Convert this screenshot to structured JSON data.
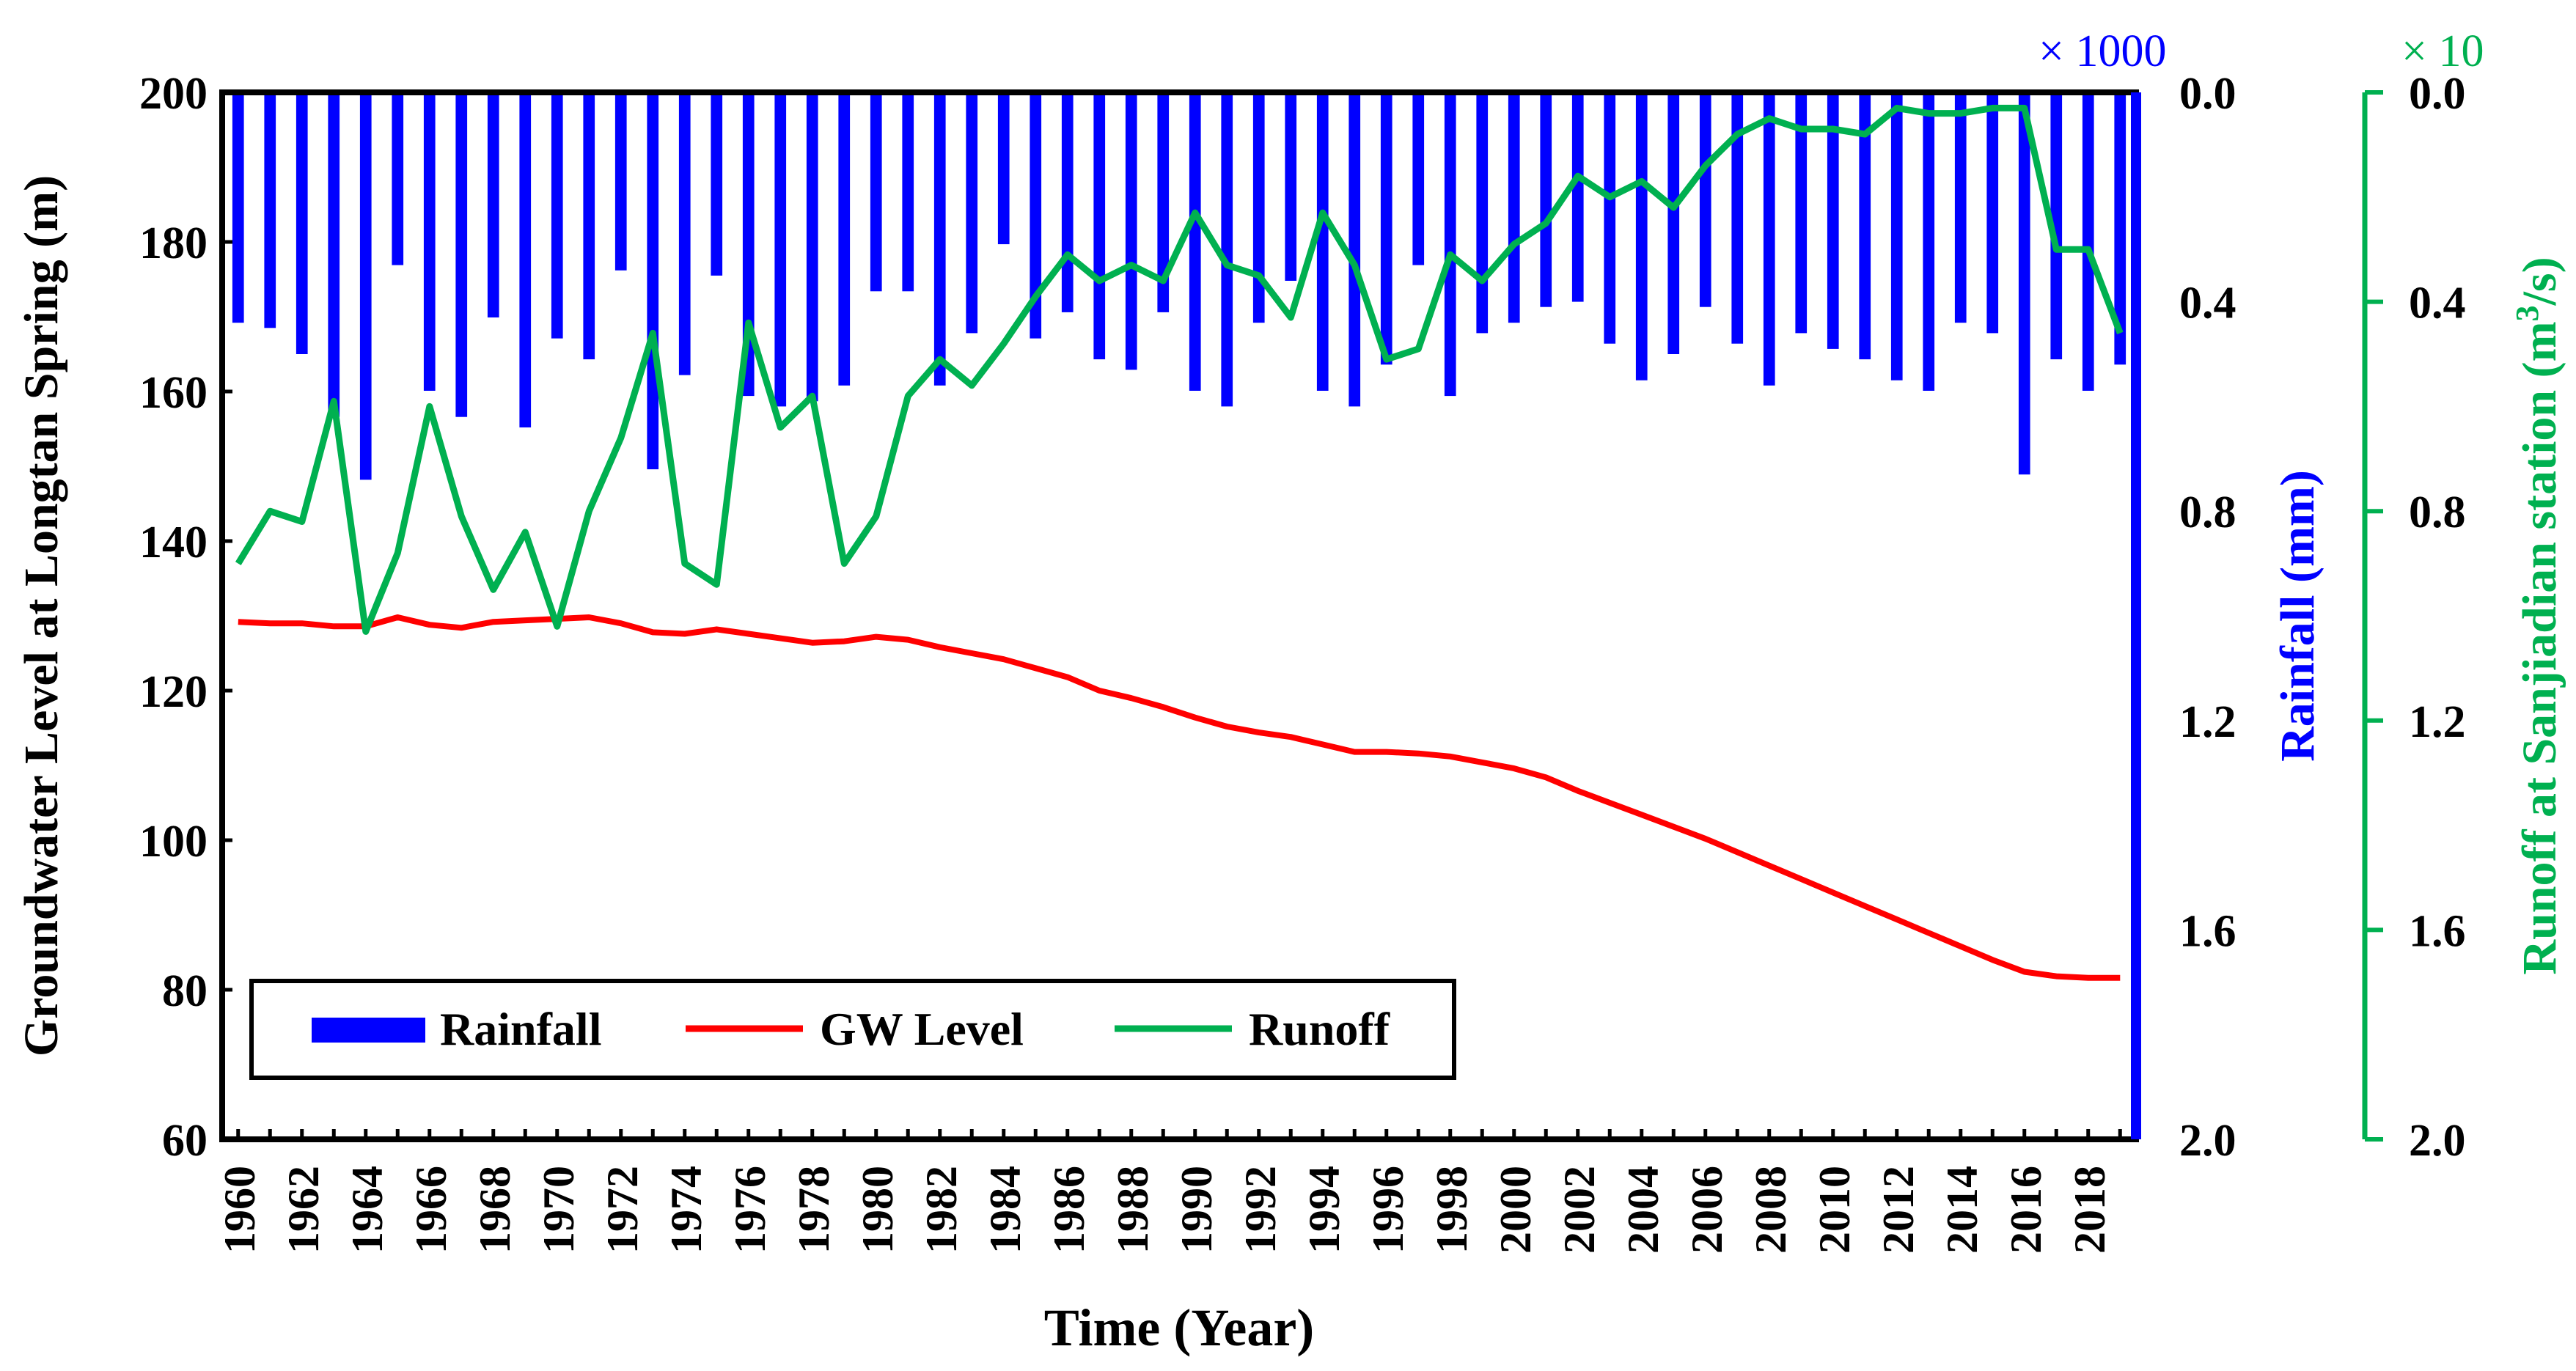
{
  "chart_data": {
    "type": "bar+line",
    "title": "",
    "xlabel": "Time (Year)",
    "ylabel_left": "Groundwater Level at Longtan Spring (m)",
    "ylabel_right1": "Rainfall (mm)",
    "ylabel_right2_prefix": "Runoff at Sanjiadian station (m",
    "ylabel_right2_sup": "3",
    "ylabel_right2_suffix": "/s)",
    "rainfall_multiplier": "× 1000",
    "runoff_multiplier": "× 10",
    "x": [
      1960,
      1961,
      1962,
      1963,
      1964,
      1965,
      1966,
      1967,
      1968,
      1969,
      1970,
      1971,
      1972,
      1973,
      1974,
      1975,
      1976,
      1977,
      1978,
      1979,
      1980,
      1981,
      1982,
      1983,
      1984,
      1985,
      1986,
      1987,
      1988,
      1989,
      1990,
      1991,
      1992,
      1993,
      1994,
      1995,
      1996,
      1997,
      1998,
      1999,
      2000,
      2001,
      2002,
      2003,
      2004,
      2005,
      2006,
      2007,
      2008,
      2009,
      2010,
      2011,
      2012,
      2013,
      2014,
      2015,
      2016,
      2017,
      2018,
      2019
    ],
    "x_tick_labels": [
      "1960",
      "1962",
      "1964",
      "1966",
      "1968",
      "1970",
      "1972",
      "1974",
      "1976",
      "1978",
      "1980",
      "1982",
      "1984",
      "1986",
      "1988",
      "1990",
      "1992",
      "1994",
      "1996",
      "1998",
      "2000",
      "2002",
      "2004",
      "2006",
      "2008",
      "2010",
      "2012",
      "2014",
      "2016",
      "2018"
    ],
    "ylim_left": [
      60,
      200
    ],
    "y_ticks_left": [
      "200",
      "180",
      "160",
      "140",
      "120",
      "100",
      "80",
      "60"
    ],
    "ylim_rainfall": [
      0,
      2.0
    ],
    "y_ticks_rainfall": [
      "0.0",
      "0.4",
      "0.8",
      "1.2",
      "1.6",
      "2.0"
    ],
    "ylim_runoff": [
      0,
      2.0
    ],
    "y_ticks_runoff": [
      "0.0",
      "0.4",
      "0.8",
      "1.2",
      "1.6",
      "2.0"
    ],
    "series": [
      {
        "name": "Rainfall",
        "type": "bar",
        "axis": "rainfall",
        "color": "#0000ff",
        "values": [
          0.44,
          0.45,
          0.5,
          0.62,
          0.74,
          0.33,
          0.57,
          0.62,
          0.43,
          0.64,
          0.47,
          0.51,
          0.34,
          0.72,
          0.54,
          0.35,
          0.58,
          0.6,
          0.59,
          0.56,
          0.38,
          0.38,
          0.56,
          0.46,
          0.29,
          0.47,
          0.42,
          0.51,
          0.53,
          0.42,
          0.57,
          0.6,
          0.44,
          0.36,
          0.57,
          0.6,
          0.52,
          0.33,
          0.58,
          0.46,
          0.44,
          0.41,
          0.4,
          0.48,
          0.55,
          0.5,
          0.41,
          0.48,
          0.56,
          0.46,
          0.49,
          0.51,
          0.55,
          0.57,
          0.44,
          0.46,
          0.73,
          0.51,
          0.57,
          0.52
        ]
      },
      {
        "name": "GW Level",
        "type": "line",
        "axis": "left",
        "color": "#ff0000",
        "values": [
          129.2,
          129,
          129,
          128.6,
          128.6,
          129.8,
          128.8,
          128.4,
          129.2,
          129.4,
          129.6,
          129.8,
          129,
          127.8,
          127.6,
          128.2,
          127.6,
          127,
          126.4,
          126.6,
          127.2,
          126.8,
          125.8,
          125,
          124.2,
          123,
          121.8,
          120,
          119,
          117.8,
          116.4,
          115.2,
          114.4,
          113.8,
          112.8,
          111.8,
          111.8,
          111.6,
          111.2,
          110.4,
          109.6,
          108.4,
          106.6,
          105,
          103.4,
          101.8,
          100.2,
          98.4,
          96.6,
          94.8,
          93,
          91.2,
          89.4,
          87.6,
          85.8,
          84,
          82.4,
          81.8,
          81.6,
          81.6
        ]
      },
      {
        "name": "Runoff",
        "type": "line",
        "axis": "runoff",
        "color": "#00b050",
        "values": [
          0.9,
          0.8,
          0.82,
          0.59,
          1.03,
          0.88,
          0.6,
          0.81,
          0.95,
          0.84,
          1.02,
          0.8,
          0.66,
          0.46,
          0.9,
          0.94,
          0.44,
          0.64,
          0.58,
          0.9,
          0.81,
          0.58,
          0.51,
          0.56,
          0.48,
          0.39,
          0.31,
          0.36,
          0.33,
          0.36,
          0.23,
          0.33,
          0.35,
          0.43,
          0.23,
          0.33,
          0.51,
          0.49,
          0.31,
          0.36,
          0.29,
          0.25,
          0.16,
          0.2,
          0.17,
          0.22,
          0.14,
          0.08,
          0.05,
          0.07,
          0.07,
          0.08,
          0.03,
          0.04,
          0.04,
          0.03,
          0.03,
          0.3,
          0.3,
          0.46
        ]
      }
    ],
    "legend": {
      "position": "bottom-left",
      "entries": [
        "Rainfall",
        "GW Level",
        "Runoff"
      ]
    },
    "grid": false
  }
}
